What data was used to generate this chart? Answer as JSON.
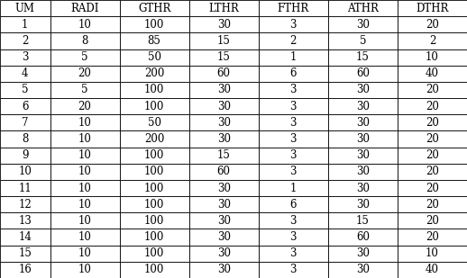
{
  "columns": [
    "UM",
    "RADI",
    "GTHR",
    "LTHR",
    "FTHR",
    "ATHR",
    "DTHR"
  ],
  "rows": [
    [
      1,
      10,
      100,
      30,
      3,
      30,
      20
    ],
    [
      2,
      8,
      85,
      15,
      2,
      5,
      2
    ],
    [
      3,
      5,
      50,
      15,
      1,
      15,
      10
    ],
    [
      4,
      20,
      200,
      60,
      6,
      60,
      40
    ],
    [
      5,
      5,
      100,
      30,
      3,
      30,
      20
    ],
    [
      6,
      20,
      100,
      30,
      3,
      30,
      20
    ],
    [
      7,
      10,
      50,
      30,
      3,
      30,
      20
    ],
    [
      8,
      10,
      200,
      30,
      3,
      30,
      20
    ],
    [
      9,
      10,
      100,
      15,
      3,
      30,
      20
    ],
    [
      10,
      10,
      100,
      60,
      3,
      30,
      20
    ],
    [
      11,
      10,
      100,
      30,
      1,
      30,
      20
    ],
    [
      12,
      10,
      100,
      30,
      6,
      30,
      20
    ],
    [
      13,
      10,
      100,
      30,
      3,
      15,
      20
    ],
    [
      14,
      10,
      100,
      30,
      3,
      60,
      20
    ],
    [
      15,
      10,
      100,
      30,
      3,
      30,
      10
    ],
    [
      16,
      10,
      100,
      30,
      3,
      30,
      40
    ]
  ],
  "background_color": "#ffffff",
  "cell_bg_color": "#ffffff",
  "text_color": "#000000",
  "border_color": "#000000",
  "font_size": 8.5,
  "header_font_size": 8.5,
  "fig_width": 5.18,
  "fig_height": 3.09,
  "dpi": 100,
  "col_widths_raw": [
    0.72,
    1.0,
    1.0,
    1.0,
    1.0,
    1.0,
    1.0
  ],
  "line_width": 0.6
}
